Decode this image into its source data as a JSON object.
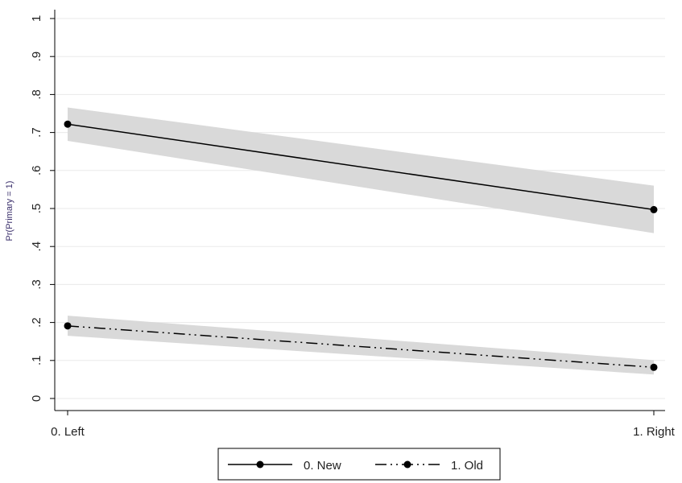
{
  "chart_data": {
    "type": "line",
    "title": "",
    "xlabel": "",
    "ylabel": "Pr(Primary = 1)",
    "categories": [
      "0. Left",
      "1. Right"
    ],
    "ylim": [
      0,
      1
    ],
    "yticks": [
      {
        "value": 0,
        "label": "0"
      },
      {
        "value": 0.1,
        "label": ".1"
      },
      {
        "value": 0.2,
        "label": ".2"
      },
      {
        "value": 0.3,
        "label": ".3"
      },
      {
        "value": 0.4,
        "label": ".4"
      },
      {
        "value": 0.5,
        "label": ".5"
      },
      {
        "value": 0.6,
        "label": ".6"
      },
      {
        "value": 0.7,
        "label": ".7"
      },
      {
        "value": 0.8,
        "label": ".8"
      },
      {
        "value": 0.9,
        "label": ".9"
      },
      {
        "value": 1,
        "label": "1"
      }
    ],
    "grid": true,
    "legend_position": "bottom",
    "series": [
      {
        "name": "0. New",
        "values": [
          0.722,
          0.497
        ],
        "ci_lower": [
          0.678,
          0.435
        ],
        "ci_upper": [
          0.766,
          0.56
        ],
        "style": "solid"
      },
      {
        "name": "1. Old",
        "values": [
          0.191,
          0.082
        ],
        "ci_lower": [
          0.165,
          0.063
        ],
        "ci_upper": [
          0.218,
          0.101
        ],
        "style": "dash-dot-dot"
      }
    ],
    "colors": {
      "line": "#000000",
      "ci_band": "#d9d9d9",
      "grid": "#eaeaea",
      "axis_title": "#3a2f6b"
    }
  }
}
